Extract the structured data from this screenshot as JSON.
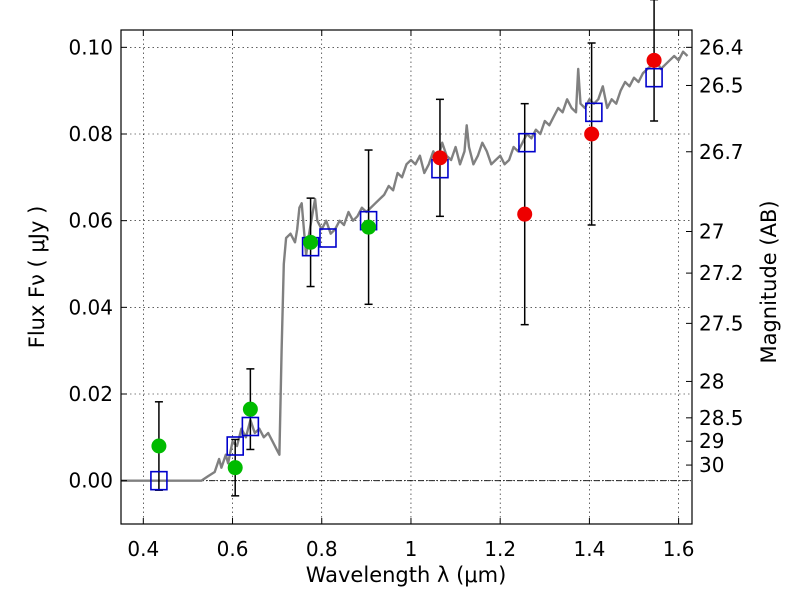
{
  "chart_data": {
    "type": "scatter",
    "xlabel": "Wavelength  λ (μm)",
    "ylabel": "Flux  Fν  ( μJy )",
    "y2label": "Magnitude (AB)",
    "xlim": [
      0.35,
      1.63
    ],
    "ylim": [
      -0.01,
      0.104
    ],
    "grid": true,
    "x_ticks": [
      {
        "value": 0.4,
        "label": "0.4"
      },
      {
        "value": 0.6,
        "label": "0.6"
      },
      {
        "value": 0.8,
        "label": "0.8"
      },
      {
        "value": 1.0,
        "label": "1"
      },
      {
        "value": 1.2,
        "label": "1.2"
      },
      {
        "value": 1.4,
        "label": "1.4"
      },
      {
        "value": 1.6,
        "label": "1.6"
      }
    ],
    "y_ticks": [
      {
        "value": 0.0,
        "label": "0.00"
      },
      {
        "value": 0.02,
        "label": "0.02"
      },
      {
        "value": 0.04,
        "label": "0.04"
      },
      {
        "value": 0.06,
        "label": "0.06"
      },
      {
        "value": 0.08,
        "label": "0.08"
      },
      {
        "value": 0.1,
        "label": "0.10"
      }
    ],
    "magnitude_ticks": [
      {
        "label": "26.4",
        "flux": 0.1
      },
      {
        "label": "26.5",
        "flux": 0.0912
      },
      {
        "label": "26.7",
        "flux": 0.0759
      },
      {
        "label": "27",
        "flux": 0.0575
      },
      {
        "label": "27.2",
        "flux": 0.0479
      },
      {
        "label": "27.5",
        "flux": 0.0363
      },
      {
        "label": "28",
        "flux": 0.0229
      },
      {
        "label": "28.5",
        "flux": 0.0145
      },
      {
        "label": "29",
        "flux": 0.0091
      },
      {
        "label": "30",
        "flux": 0.0036
      }
    ],
    "model_spectrum": {
      "color": "#808080",
      "points": [
        [
          0.35,
          0.0
        ],
        [
          0.53,
          0.0
        ],
        [
          0.545,
          0.001
        ],
        [
          0.56,
          0.002
        ],
        [
          0.57,
          0.005
        ],
        [
          0.575,
          0.003
        ],
        [
          0.585,
          0.006
        ],
        [
          0.59,
          0.004
        ],
        [
          0.6,
          0.009
        ],
        [
          0.61,
          0.008
        ],
        [
          0.62,
          0.012
        ],
        [
          0.63,
          0.01
        ],
        [
          0.64,
          0.014
        ],
        [
          0.65,
          0.011
        ],
        [
          0.66,
          0.012
        ],
        [
          0.67,
          0.01
        ],
        [
          0.68,
          0.011
        ],
        [
          0.69,
          0.009
        ],
        [
          0.7,
          0.007
        ],
        [
          0.705,
          0.006
        ],
        [
          0.71,
          0.03
        ],
        [
          0.715,
          0.05
        ],
        [
          0.72,
          0.056
        ],
        [
          0.73,
          0.057
        ],
        [
          0.74,
          0.055
        ],
        [
          0.745,
          0.058
        ],
        [
          0.75,
          0.063
        ],
        [
          0.755,
          0.064
        ],
        [
          0.76,
          0.058
        ],
        [
          0.765,
          0.052
        ],
        [
          0.77,
          0.056
        ],
        [
          0.78,
          0.062
        ],
        [
          0.785,
          0.065
        ],
        [
          0.79,
          0.06
        ],
        [
          0.8,
          0.058
        ],
        [
          0.81,
          0.06
        ],
        [
          0.82,
          0.057
        ],
        [
          0.83,
          0.058
        ],
        [
          0.84,
          0.06
        ],
        [
          0.85,
          0.059
        ],
        [
          0.86,
          0.062
        ],
        [
          0.87,
          0.06
        ],
        [
          0.88,
          0.061
        ],
        [
          0.89,
          0.063
        ],
        [
          0.9,
          0.062
        ],
        [
          0.92,
          0.064
        ],
        [
          0.94,
          0.066
        ],
        [
          0.95,
          0.068
        ],
        [
          0.96,
          0.067
        ],
        [
          0.97,
          0.071
        ],
        [
          0.98,
          0.07
        ],
        [
          0.99,
          0.073
        ],
        [
          1.0,
          0.074
        ],
        [
          1.01,
          0.073
        ],
        [
          1.02,
          0.075
        ],
        [
          1.03,
          0.071
        ],
        [
          1.04,
          0.073
        ],
        [
          1.05,
          0.076
        ],
        [
          1.06,
          0.074
        ],
        [
          1.07,
          0.078
        ],
        [
          1.08,
          0.075
        ],
        [
          1.09,
          0.074
        ],
        [
          1.1,
          0.077
        ],
        [
          1.11,
          0.073
        ],
        [
          1.12,
          0.076
        ],
        [
          1.125,
          0.082
        ],
        [
          1.13,
          0.077
        ],
        [
          1.14,
          0.073
        ],
        [
          1.15,
          0.075
        ],
        [
          1.16,
          0.078
        ],
        [
          1.17,
          0.076
        ],
        [
          1.18,
          0.073
        ],
        [
          1.19,
          0.074
        ],
        [
          1.2,
          0.075
        ],
        [
          1.21,
          0.073
        ],
        [
          1.22,
          0.074
        ],
        [
          1.23,
          0.077
        ],
        [
          1.24,
          0.076
        ],
        [
          1.25,
          0.078
        ],
        [
          1.26,
          0.08
        ],
        [
          1.27,
          0.079
        ],
        [
          1.28,
          0.081
        ],
        [
          1.29,
          0.08
        ],
        [
          1.3,
          0.083
        ],
        [
          1.31,
          0.082
        ],
        [
          1.32,
          0.084
        ],
        [
          1.33,
          0.086
        ],
        [
          1.34,
          0.085
        ],
        [
          1.35,
          0.088
        ],
        [
          1.36,
          0.086
        ],
        [
          1.37,
          0.085
        ],
        [
          1.375,
          0.095
        ],
        [
          1.38,
          0.087
        ],
        [
          1.39,
          0.086
        ],
        [
          1.4,
          0.088
        ],
        [
          1.41,
          0.087
        ],
        [
          1.42,
          0.088
        ],
        [
          1.43,
          0.091
        ],
        [
          1.44,
          0.086
        ],
        [
          1.45,
          0.088
        ],
        [
          1.46,
          0.087
        ],
        [
          1.47,
          0.09
        ],
        [
          1.48,
          0.092
        ],
        [
          1.49,
          0.091
        ],
        [
          1.5,
          0.093
        ],
        [
          1.51,
          0.092
        ],
        [
          1.52,
          0.094
        ],
        [
          1.53,
          0.095
        ],
        [
          1.54,
          0.096
        ],
        [
          1.55,
          0.097
        ],
        [
          1.56,
          0.095
        ],
        [
          1.57,
          0.096
        ],
        [
          1.58,
          0.097
        ],
        [
          1.59,
          0.098
        ],
        [
          1.6,
          0.097
        ],
        [
          1.61,
          0.099
        ],
        [
          1.62,
          0.098
        ]
      ]
    },
    "model_photometry": {
      "color": "#0000cc",
      "points": [
        [
          0.435,
          0.0
        ],
        [
          0.606,
          0.008
        ],
        [
          0.64,
          0.0125
        ],
        [
          0.775,
          0.054
        ],
        [
          0.814,
          0.056
        ],
        [
          0.905,
          0.06
        ],
        [
          1.065,
          0.072
        ],
        [
          1.26,
          0.078
        ],
        [
          1.41,
          0.085
        ],
        [
          1.545,
          0.093
        ]
      ]
    },
    "observed_optical": {
      "color": "#00bb00",
      "points": [
        {
          "x": 0.435,
          "y": 0.008,
          "err": 0.0102
        },
        {
          "x": 0.606,
          "y": 0.003,
          "err": 0.0065
        },
        {
          "x": 0.64,
          "y": 0.0165,
          "err": 0.0093
        },
        {
          "x": 0.775,
          "y": 0.055,
          "err": 0.0102
        },
        {
          "x": 0.905,
          "y": 0.0585,
          "err": 0.0178
        }
      ]
    },
    "observed_infrared": {
      "color": "#ee0000",
      "points": [
        {
          "x": 1.065,
          "y": 0.0745,
          "err": 0.0135
        },
        {
          "x": 1.255,
          "y": 0.0615,
          "err": 0.0255
        },
        {
          "x": 1.405,
          "y": 0.08,
          "err": 0.021
        },
        {
          "x": 1.545,
          "y": 0.097,
          "err": 0.014
        }
      ]
    }
  }
}
